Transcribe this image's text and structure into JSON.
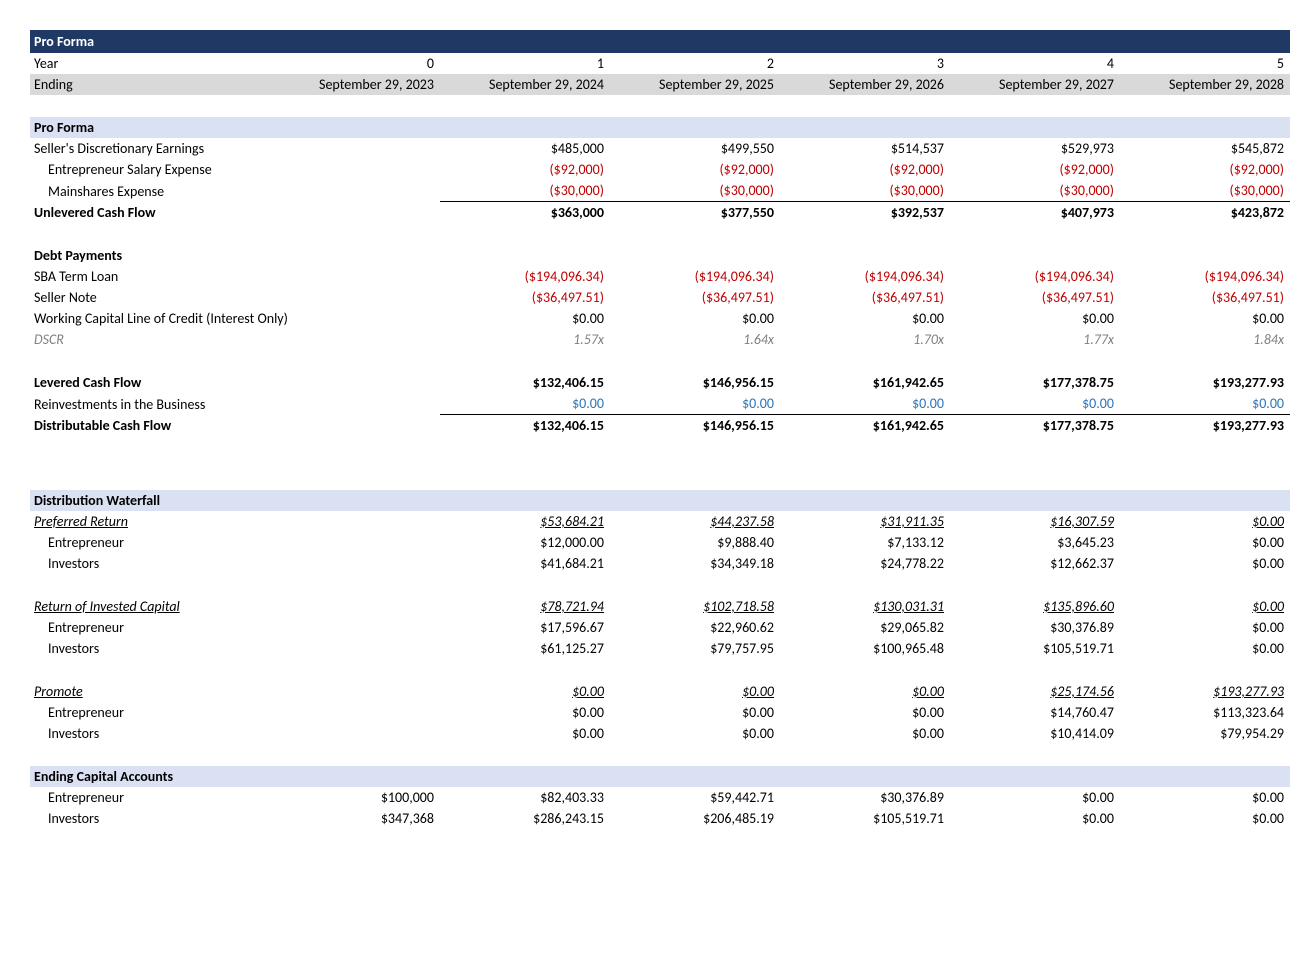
{
  "title": "Pro Forma",
  "colors": {
    "header_bg": "#1f3864",
    "header_fg": "#ffffff",
    "section_bg": "#d9e1f2",
    "ending_bg": "#d9d9d9",
    "negative": "#c00000",
    "link": "#2e75b6",
    "dim": "#808080"
  },
  "header": {
    "year_label": "Year",
    "years": [
      "0",
      "1",
      "2",
      "3",
      "4",
      "5"
    ],
    "ending_label": "Ending",
    "endings": [
      "September 29, 2023",
      "September 29, 2024",
      "September 29, 2025",
      "September 29, 2026",
      "September 29, 2027",
      "September 29, 2028"
    ]
  },
  "pro_forma": {
    "section_label": "Pro Forma",
    "sde": {
      "label": "Seller's Discretionary Earnings",
      "vals": [
        "",
        "$485,000",
        "$499,550",
        "$514,537",
        "$529,973",
        "$545,872"
      ]
    },
    "salary": {
      "label": "Entrepreneur Salary Expense",
      "vals": [
        "",
        "($92,000)",
        "($92,000)",
        "($92,000)",
        "($92,000)",
        "($92,000)"
      ],
      "neg": true,
      "indent": true
    },
    "mainshares": {
      "label": "Mainshares Expense",
      "vals": [
        "",
        "($30,000)",
        "($30,000)",
        "($30,000)",
        "($30,000)",
        "($30,000)"
      ],
      "neg": true,
      "indent": true,
      "border_bottom": true
    },
    "ucf": {
      "label": "Unlevered Cash Flow",
      "vals": [
        "",
        "$363,000",
        "$377,550",
        "$392,537",
        "$407,973",
        "$423,872"
      ],
      "bold": true
    }
  },
  "debt": {
    "section_label": "Debt Payments",
    "sba": {
      "label": "SBA Term Loan",
      "vals": [
        "",
        "($194,096.34)",
        "($194,096.34)",
        "($194,096.34)",
        "($194,096.34)",
        "($194,096.34)"
      ],
      "neg": true
    },
    "seller_note": {
      "label": "Seller Note",
      "vals": [
        "",
        "($36,497.51)",
        "($36,497.51)",
        "($36,497.51)",
        "($36,497.51)",
        "($36,497.51)"
      ],
      "neg": true
    },
    "wcloc": {
      "label": "Working Capital Line of Credit (Interest Only)",
      "vals": [
        "",
        "$0.00",
        "$0.00",
        "$0.00",
        "$0.00",
        "$0.00"
      ]
    },
    "dscr": {
      "label": "DSCR",
      "vals": [
        "",
        "1.57x",
        "1.64x",
        "1.70x",
        "1.77x",
        "1.84x"
      ],
      "italic": true,
      "dim": true
    }
  },
  "levered": {
    "lcf": {
      "label": "Levered Cash Flow",
      "vals": [
        "",
        "$132,406.15",
        "$146,956.15",
        "$161,942.65",
        "$177,378.75",
        "$193,277.93"
      ],
      "bold": true
    },
    "reinvest": {
      "label": "Reinvestments in the Business",
      "vals": [
        "",
        "$0.00",
        "$0.00",
        "$0.00",
        "$0.00",
        "$0.00"
      ],
      "link": true,
      "border_bottom": true
    },
    "dcf": {
      "label": "Distributable Cash Flow",
      "vals": [
        "",
        "$132,406.15",
        "$146,956.15",
        "$161,942.65",
        "$177,378.75",
        "$193,277.93"
      ],
      "bold": true
    }
  },
  "waterfall": {
    "section_label": "Distribution Waterfall",
    "pref": {
      "label": "Preferred Return",
      "total": [
        "",
        "$53,684.21",
        "$44,237.58",
        "$31,911.35",
        "$16,307.59",
        "$0.00"
      ],
      "entrepreneur": {
        "label": "Entrepreneur",
        "vals": [
          "",
          "$12,000.00",
          "$9,888.40",
          "$7,133.12",
          "$3,645.23",
          "$0.00"
        ]
      },
      "investors": {
        "label": "Investors",
        "vals": [
          "",
          "$41,684.21",
          "$34,349.18",
          "$24,778.22",
          "$12,662.37",
          "$0.00"
        ]
      }
    },
    "roic": {
      "label": "Return of Invested Capital",
      "total": [
        "",
        "$78,721.94",
        "$102,718.58",
        "$130,031.31",
        "$135,896.60",
        "$0.00"
      ],
      "entrepreneur": {
        "label": "Entrepreneur",
        "vals": [
          "",
          "$17,596.67",
          "$22,960.62",
          "$29,065.82",
          "$30,376.89",
          "$0.00"
        ]
      },
      "investors": {
        "label": "Investors",
        "vals": [
          "",
          "$61,125.27",
          "$79,757.95",
          "$100,965.48",
          "$105,519.71",
          "$0.00"
        ]
      }
    },
    "promote": {
      "label": "Promote",
      "total": [
        "",
        "$0.00",
        "$0.00",
        "$0.00",
        "$25,174.56",
        "$193,277.93"
      ],
      "entrepreneur": {
        "label": "Entrepreneur",
        "vals": [
          "",
          "$0.00",
          "$0.00",
          "$0.00",
          "$14,760.47",
          "$113,323.64"
        ]
      },
      "investors": {
        "label": "Investors",
        "vals": [
          "",
          "$0.00",
          "$0.00",
          "$0.00",
          "$10,414.09",
          "$79,954.29"
        ]
      }
    }
  },
  "ending_capital": {
    "section_label": "Ending Capital Accounts",
    "entrepreneur": {
      "label": "Entrepreneur",
      "vals": [
        "$100,000",
        "$82,403.33",
        "$59,442.71",
        "$30,376.89",
        "$0.00",
        "$0.00"
      ]
    },
    "investors": {
      "label": "Investors",
      "vals": [
        "$347,368",
        "$286,243.15",
        "$206,485.19",
        "$105,519.71",
        "$0.00",
        "$0.00"
      ]
    }
  }
}
